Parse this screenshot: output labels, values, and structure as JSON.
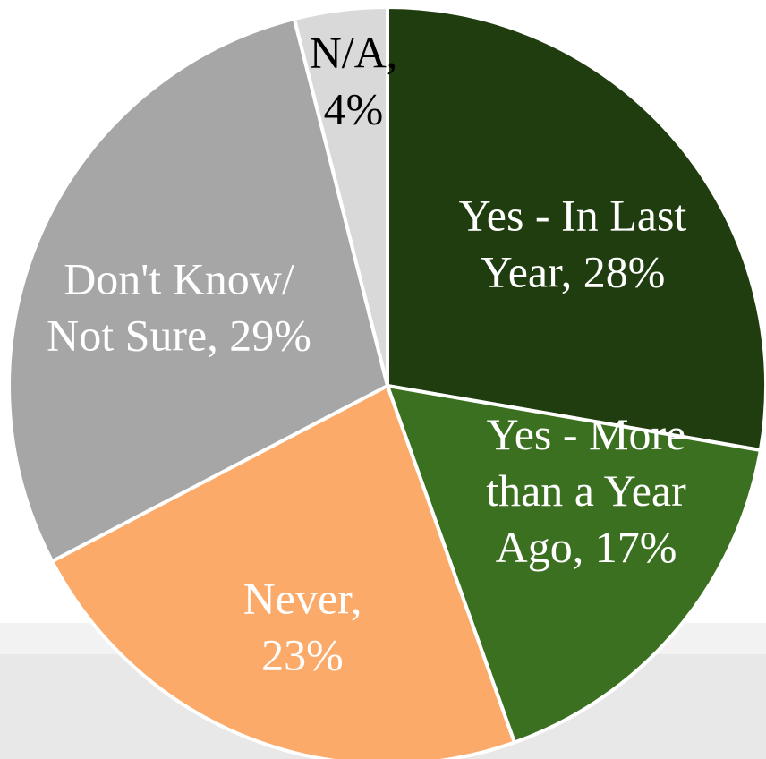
{
  "chart_data": {
    "type": "pie",
    "title": "",
    "legend": "none",
    "slices": [
      {
        "label_lines": [
          "Yes - In Last",
          "Year, 28%"
        ],
        "category": "Yes - In Last Year",
        "value": 28,
        "color": "#203d10",
        "text_color": "#ffffff"
      },
      {
        "label_lines": [
          "Yes - More",
          "than a Year",
          "Ago, 17%"
        ],
        "category": "Yes - More than a Year Ago",
        "value": 17,
        "color": "#3b7020",
        "text_color": "#ffffff"
      },
      {
        "label_lines": [
          "Never,",
          "23%"
        ],
        "category": "Never",
        "value": 23,
        "color": "#fbaa6a",
        "text_color": "#ffffff"
      },
      {
        "label_lines": [
          "Don't Know/",
          "Not Sure, 29%"
        ],
        "category": "Don't Know/ Not Sure",
        "value": 29,
        "color": "#a6a6a6",
        "text_color": "#ffffff"
      },
      {
        "label_lines": [
          "N/A,",
          "4%"
        ],
        "category": "N/A",
        "value": 4,
        "color": "#d9d9d9",
        "text_color": "#000000"
      }
    ]
  }
}
